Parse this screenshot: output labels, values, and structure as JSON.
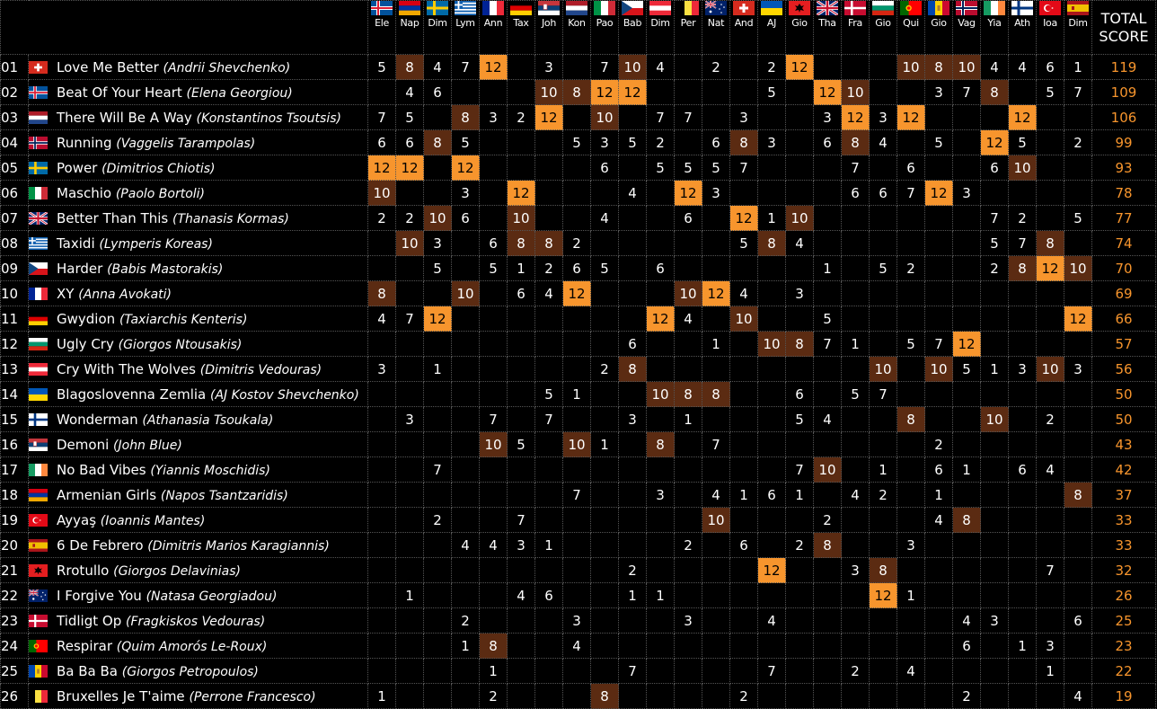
{
  "header": {
    "total_line1": "TOTAL",
    "total_line2": "SCORE",
    "voters": [
      {
        "abbr": "Ele",
        "flag": "flag-iceland-icon"
      },
      {
        "abbr": "Nap",
        "flag": "flag-armenia-icon"
      },
      {
        "abbr": "Dim",
        "flag": "flag-sweden-icon"
      },
      {
        "abbr": "Lym",
        "flag": "flag-greece-icon"
      },
      {
        "abbr": "Ann",
        "flag": "flag-france-icon"
      },
      {
        "abbr": "Tax",
        "flag": "flag-germany-icon"
      },
      {
        "abbr": "Joh",
        "flag": "flag-serbia-icon"
      },
      {
        "abbr": "Kon",
        "flag": "flag-netherlands-icon"
      },
      {
        "abbr": "Pao",
        "flag": "flag-italy-icon"
      },
      {
        "abbr": "Bab",
        "flag": "flag-czechia-icon"
      },
      {
        "abbr": "Dim",
        "flag": "flag-austria-icon"
      },
      {
        "abbr": "Per",
        "flag": "flag-belgium-icon"
      },
      {
        "abbr": "Nat",
        "flag": "flag-australia-icon"
      },
      {
        "abbr": "And",
        "flag": "flag-switzerland-icon"
      },
      {
        "abbr": "AJ",
        "flag": "flag-ukraine-icon"
      },
      {
        "abbr": "Gio",
        "flag": "flag-albania-icon"
      },
      {
        "abbr": "Tha",
        "flag": "flag-uk-icon"
      },
      {
        "abbr": "Fra",
        "flag": "flag-denmark-icon"
      },
      {
        "abbr": "Gio",
        "flag": "flag-bulgaria-icon"
      },
      {
        "abbr": "Qui",
        "flag": "flag-portugal-icon"
      },
      {
        "abbr": "Gio",
        "flag": "flag-moldova-icon"
      },
      {
        "abbr": "Vag",
        "flag": "flag-norway-icon"
      },
      {
        "abbr": "Yia",
        "flag": "flag-ireland-icon"
      },
      {
        "abbr": "Ath",
        "flag": "flag-finland-icon"
      },
      {
        "abbr": "Ioa",
        "flag": "flag-turkey-icon"
      },
      {
        "abbr": "Dim",
        "flag": "flag-spain-icon"
      }
    ]
  },
  "rows": [
    {
      "rank": "01",
      "flag": "flag-switzerland-icon",
      "song": "Love Me Better",
      "artist": "(Andrii Shevchenko)",
      "scores": [
        "5",
        "8",
        "4",
        "7",
        "12",
        "",
        "3",
        "",
        "7",
        "10",
        "4",
        "",
        "2",
        "",
        "2",
        "12",
        "",
        "",
        "",
        "10",
        "8",
        "10",
        "4",
        "4",
        "6",
        "1"
      ],
      "total": "119"
    },
    {
      "rank": "02",
      "flag": "flag-iceland-icon",
      "song": "Beat Of Your Heart",
      "artist": "(Elena Georgiou)",
      "scores": [
        "",
        "4",
        "6",
        "",
        "",
        "",
        "10",
        "8",
        "12",
        "12",
        "",
        "",
        "",
        "",
        "5",
        "",
        "12",
        "10",
        "",
        "",
        "3",
        "7",
        "8",
        "",
        "5",
        "7"
      ],
      "total": "109"
    },
    {
      "rank": "03",
      "flag": "flag-netherlands-icon",
      "song": "There Will Be A Way",
      "artist": "(Konstantinos Tsoutsis)",
      "scores": [
        "7",
        "5",
        "",
        "8",
        "3",
        "2",
        "12",
        "",
        "10",
        "",
        "7",
        "7",
        "",
        "3",
        "",
        "",
        "3",
        "12",
        "3",
        "12",
        "",
        "",
        "",
        "12",
        "",
        ""
      ],
      "total": "106"
    },
    {
      "rank": "04",
      "flag": "flag-norway-icon",
      "song": "Running",
      "artist": "(Vaggelis Tarampolas)",
      "scores": [
        "6",
        "6",
        "8",
        "5",
        "",
        "",
        "",
        "5",
        "3",
        "5",
        "2",
        "",
        "6",
        "8",
        "3",
        "",
        "6",
        "8",
        "4",
        "",
        "5",
        "",
        "12",
        "5",
        "",
        "2"
      ],
      "total": "99"
    },
    {
      "rank": "05",
      "flag": "flag-sweden-icon",
      "song": "Power",
      "artist": "(Dimitrios Chiotis)",
      "scores": [
        "12",
        "12",
        "",
        "12",
        "",
        "",
        "",
        "",
        "6",
        "",
        "5",
        "5",
        "5",
        "7",
        "",
        "",
        "",
        "7",
        "",
        "6",
        "",
        "",
        "6",
        "10",
        "",
        ""
      ],
      "total": "93"
    },
    {
      "rank": "06",
      "flag": "flag-italy-icon",
      "song": "Maschio",
      "artist": "(Paolo Bortoli)",
      "scores": [
        "10",
        "",
        "",
        "3",
        "",
        "12",
        "",
        "",
        "",
        "4",
        "",
        "12",
        "3",
        "",
        "",
        "",
        "",
        "6",
        "6",
        "7",
        "12",
        "3",
        "",
        "",
        "",
        ""
      ],
      "total": "78"
    },
    {
      "rank": "07",
      "flag": "flag-uk-icon",
      "song": "Better Than This",
      "artist": "(Thanasis Kormas)",
      "scores": [
        "2",
        "2",
        "10",
        "6",
        "",
        "10",
        "",
        "",
        "4",
        "",
        "",
        "6",
        "",
        "12",
        "1",
        "10",
        "",
        "",
        "",
        "",
        "",
        "",
        "7",
        "2",
        "",
        "5"
      ],
      "total": "77"
    },
    {
      "rank": "08",
      "flag": "flag-greece-icon",
      "song": "Taxidi",
      "artist": "(Lymperis Koreas)",
      "scores": [
        "",
        "10",
        "3",
        "",
        "6",
        "8",
        "8",
        "2",
        "",
        "",
        "",
        "",
        "",
        "5",
        "8",
        "4",
        "",
        "",
        "",
        "",
        "",
        "",
        "5",
        "7",
        "8",
        ""
      ],
      "total": "74"
    },
    {
      "rank": "09",
      "flag": "flag-czechia-icon",
      "song": "Harder",
      "artist": "(Babis Mastorakis)",
      "scores": [
        "",
        "",
        "5",
        "",
        "5",
        "1",
        "2",
        "6",
        "5",
        "",
        "6",
        "",
        "",
        "",
        "",
        "",
        "1",
        "",
        "5",
        "2",
        "",
        "",
        "2",
        "8",
        "12",
        "10"
      ],
      "total": "70"
    },
    {
      "rank": "10",
      "flag": "flag-france-icon",
      "song": "XY",
      "artist": "(Anna Avokati)",
      "scores": [
        "8",
        "",
        "",
        "10",
        "",
        "6",
        "4",
        "12",
        "",
        "",
        "",
        "10",
        "12",
        "4",
        "",
        "3",
        "",
        "",
        "",
        "",
        "",
        "",
        "",
        "",
        "",
        ""
      ],
      "total": "69"
    },
    {
      "rank": "11",
      "flag": "flag-germany-icon",
      "song": "Gwydion",
      "artist": "(Taxiarchis Kenteris)",
      "scores": [
        "4",
        "7",
        "12",
        "",
        "",
        "",
        "",
        "",
        "",
        "",
        "12",
        "4",
        "",
        "10",
        "",
        "",
        "5",
        "",
        "",
        "",
        "",
        "",
        "",
        "",
        "",
        "12"
      ],
      "total": "66"
    },
    {
      "rank": "12",
      "flag": "flag-bulgaria-icon",
      "song": "Ugly Cry",
      "artist": "(Giorgos Ntousakis)",
      "scores": [
        "",
        "",
        "",
        "",
        "",
        "",
        "",
        "",
        "",
        "6",
        "",
        "",
        "1",
        "",
        "10",
        "8",
        "7",
        "1",
        "",
        "5",
        "7",
        "12",
        "",
        "",
        "",
        ""
      ],
      "total": "57"
    },
    {
      "rank": "13",
      "flag": "flag-austria-icon",
      "song": "Cry With The Wolves",
      "artist": "(Dimitris Vedouras)",
      "scores": [
        "3",
        "",
        "1",
        "",
        "",
        "",
        "",
        "",
        "2",
        "8",
        "",
        "",
        "",
        "",
        "",
        "",
        "",
        "",
        "10",
        "",
        "10",
        "5",
        "1",
        "3",
        "10",
        "3"
      ],
      "total": "56"
    },
    {
      "rank": "14",
      "flag": "flag-ukraine-icon",
      "song": "Blagoslovenna Zemlia",
      "artist": "(AJ Kostov Shevchenko)",
      "scores": [
        "",
        "",
        "",
        "",
        "",
        "",
        "5",
        "1",
        "",
        "",
        "10",
        "8",
        "8",
        "",
        "",
        "6",
        "",
        "5",
        "7",
        "",
        "",
        "",
        "",
        "",
        "",
        ""
      ],
      "total": "50"
    },
    {
      "rank": "15",
      "flag": "flag-finland-icon",
      "song": "Wonderman",
      "artist": "(Athanasia Tsoukala)",
      "scores": [
        "",
        "3",
        "",
        "",
        "7",
        "",
        "7",
        "",
        "",
        "3",
        "",
        "1",
        "",
        "",
        "",
        "5",
        "4",
        "",
        "",
        "8",
        "",
        "",
        "10",
        "",
        "2",
        ""
      ],
      "total": "50"
    },
    {
      "rank": "16",
      "flag": "flag-serbia-icon",
      "song": "Demoni",
      "artist": "(John Blue)",
      "scores": [
        "",
        "",
        "",
        "",
        "10",
        "5",
        "",
        "10",
        "1",
        "",
        "8",
        "",
        "7",
        "",
        "",
        "",
        "",
        "",
        "",
        "",
        "2",
        "",
        "",
        "",
        "",
        ""
      ],
      "total": "43"
    },
    {
      "rank": "17",
      "flag": "flag-ireland-icon",
      "song": "No Bad Vibes",
      "artist": "(Yiannis Moschidis)",
      "scores": [
        "",
        "",
        "7",
        "",
        "",
        "",
        "",
        "",
        "",
        "",
        "",
        "",
        "",
        "",
        "",
        "7",
        "10",
        "",
        "1",
        "",
        "6",
        "1",
        "",
        "6",
        "4",
        ""
      ],
      "total": "42"
    },
    {
      "rank": "18",
      "flag": "flag-armenia-icon",
      "song": "Armenian Girls",
      "artist": "(Napos Tsantzaridis)",
      "scores": [
        "",
        "",
        "",
        "",
        "",
        "",
        "",
        "7",
        "",
        "",
        "3",
        "",
        "4",
        "1",
        "6",
        "1",
        "",
        "4",
        "2",
        "",
        "1",
        "",
        "",
        "",
        "",
        "8"
      ],
      "total": "37"
    },
    {
      "rank": "19",
      "flag": "flag-turkey-icon",
      "song": "Ayyaş",
      "artist": " (Ioannis Mantes)",
      "scores": [
        "",
        "",
        "2",
        "",
        "",
        "7",
        "",
        "",
        "",
        "",
        "",
        "",
        "10",
        "",
        "",
        "",
        "2",
        "",
        "",
        "",
        "4",
        "8",
        "",
        "",
        "",
        ""
      ],
      "total": "33"
    },
    {
      "rank": "20",
      "flag": "flag-spain-icon",
      "song": "6 De Febrero",
      "artist": "(Dimitris Marios Karagiannis)",
      "scores": [
        "",
        "",
        "",
        "4",
        "4",
        "3",
        "1",
        "",
        "",
        "",
        "",
        "2",
        "",
        "6",
        "",
        "2",
        "8",
        "",
        "",
        "3",
        "",
        "",
        "",
        "",
        "",
        ""
      ],
      "total": "33"
    },
    {
      "rank": "21",
      "flag": "flag-albania-icon",
      "song": "Rrotullo",
      "artist": "(Giorgos Delavinias)",
      "scores": [
        "",
        "",
        "",
        "",
        "",
        "",
        "",
        "",
        "",
        "2",
        "",
        "",
        "",
        "",
        "12",
        "",
        "",
        "3",
        "8",
        "",
        "",
        "",
        "",
        "",
        "7",
        ""
      ],
      "total": "32"
    },
    {
      "rank": "22",
      "flag": "flag-australia-icon",
      "song": "I Forgive You",
      "artist": "(Natasa Georgiadou)",
      "scores": [
        "",
        "1",
        "",
        "",
        "",
        "4",
        "6",
        "",
        "",
        "1",
        "1",
        "",
        "",
        "",
        "",
        "",
        "",
        "",
        "12",
        "1",
        "",
        "",
        "",
        "",
        "",
        ""
      ],
      "total": "26"
    },
    {
      "rank": "23",
      "flag": "flag-denmark-icon",
      "song": "Tidligt Op",
      "artist": "(Fragkiskos Vedouras)",
      "scores": [
        "",
        "",
        "",
        "2",
        "",
        "",
        "",
        "3",
        "",
        "",
        "",
        "3",
        "",
        "",
        "4",
        "",
        "",
        "",
        "",
        "",
        "",
        "4",
        "3",
        "",
        "",
        "6"
      ],
      "total": "25"
    },
    {
      "rank": "24",
      "flag": "flag-portugal-icon",
      "song": "Respirar",
      "artist": "(Quim Amorós Le-Roux)",
      "scores": [
        "",
        "",
        "",
        "1",
        "8",
        "",
        "",
        "4",
        "",
        "",
        "",
        "",
        "",
        "",
        "",
        "",
        "",
        "",
        "",
        "",
        "",
        "6",
        "",
        "1",
        "3",
        ""
      ],
      "total": "23"
    },
    {
      "rank": "25",
      "flag": "flag-moldova-icon",
      "song": "Ba Ba Ba",
      "artist": "(Giorgos Petropoulos)",
      "scores": [
        "",
        "",
        "",
        "",
        "1",
        "",
        "",
        "",
        "",
        "7",
        "",
        "",
        "",
        "",
        "7",
        "",
        "",
        "2",
        "",
        "4",
        "",
        "",
        "",
        "",
        "1",
        ""
      ],
      "total": "22"
    },
    {
      "rank": "26",
      "flag": "flag-belgium-icon",
      "song": "Bruxelles Je T'aime",
      "artist": "(Perrone Francesco)",
      "scores": [
        "1",
        "",
        "",
        "",
        "2",
        "",
        "",
        "",
        "8",
        "",
        "",
        "",
        "",
        "2",
        "",
        "",
        "",
        "",
        "",
        "",
        "",
        "2",
        "",
        "",
        "",
        "4"
      ],
      "total": "19"
    }
  ],
  "colors": {
    "twelve_points": "#f7952d",
    "eight_ten_points": "#5b2b12",
    "total_text": "#f7952d",
    "background": "#000000"
  }
}
